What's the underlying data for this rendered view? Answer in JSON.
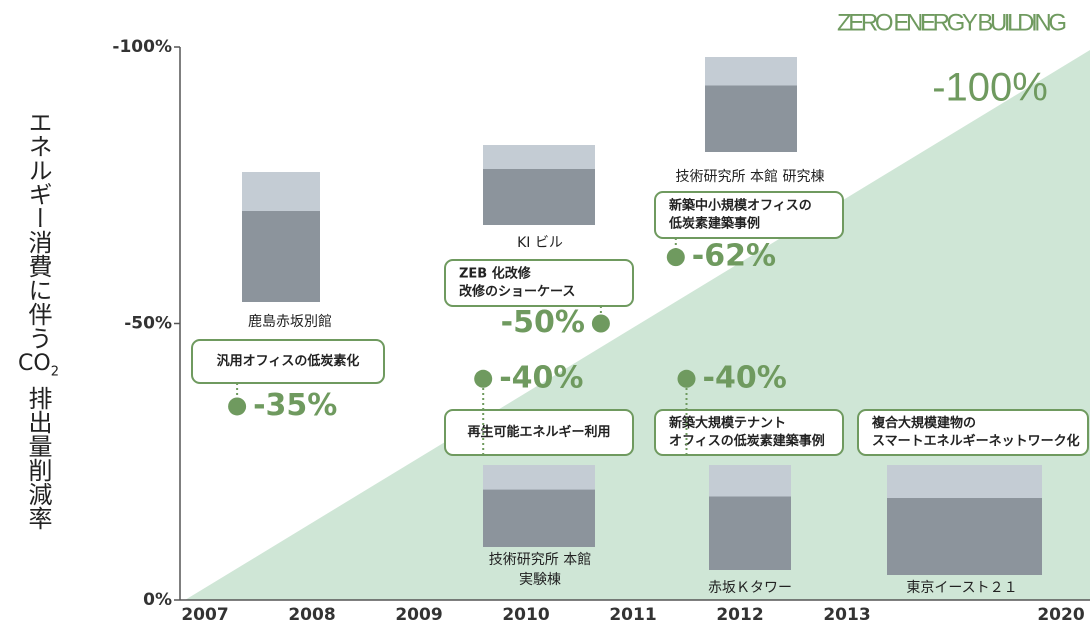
{
  "chart_data": {
    "type": "scatter",
    "title": "ZERO ENERGY BUILDING",
    "y_label_parts": [
      "エネルギー消費に伴う",
      "CO",
      "2",
      "排出量削減率"
    ],
    "categories": [
      "2007",
      "2008",
      "2009",
      "2010",
      "2011",
      "2012",
      "2013",
      null,
      "2020"
    ],
    "ylim": [
      0,
      -100
    ],
    "yticks": [
      {
        "value": -100,
        "label": "-100%"
      },
      {
        "value": -50,
        "label": "-50%"
      },
      {
        "value": 0,
        "label": "0%"
      }
    ],
    "target": {
      "value": -100,
      "label": "-100%"
    },
    "color": "#6f9a5f",
    "area_color": "#cfe6d6",
    "x": [
      2007.3,
      2009.6,
      2010.7,
      2011.5,
      2011.4
    ],
    "values": [
      -35,
      -40,
      -50,
      -40,
      -62
    ],
    "value_labels": [
      "-35%",
      "-40%",
      "-50%",
      "-40%",
      "-62%"
    ],
    "callouts": [
      [
        "汎用オフィスの低炭素化"
      ],
      [
        "再生可能エネルギー利用"
      ],
      [
        "ZEB 化改修",
        "改修のショーケース"
      ],
      [
        "新築中小規模オフィスの",
        "低炭素建築事例"
      ],
      [
        "新築大規模テナント",
        "オフィスの低炭素建築事例"
      ],
      [
        "複合大規模建物の",
        "スマートエネルギーネットワーク化"
      ]
    ],
    "captions": [
      [
        "鹿島赤坂別館"
      ],
      [
        "KI ビル"
      ],
      [
        "技術研究所 本館 研究棟"
      ],
      [
        "技術研究所 本館",
        "実験棟"
      ],
      [
        "赤坂Ｋタワー"
      ],
      [
        "東京イースト２１"
      ]
    ]
  }
}
